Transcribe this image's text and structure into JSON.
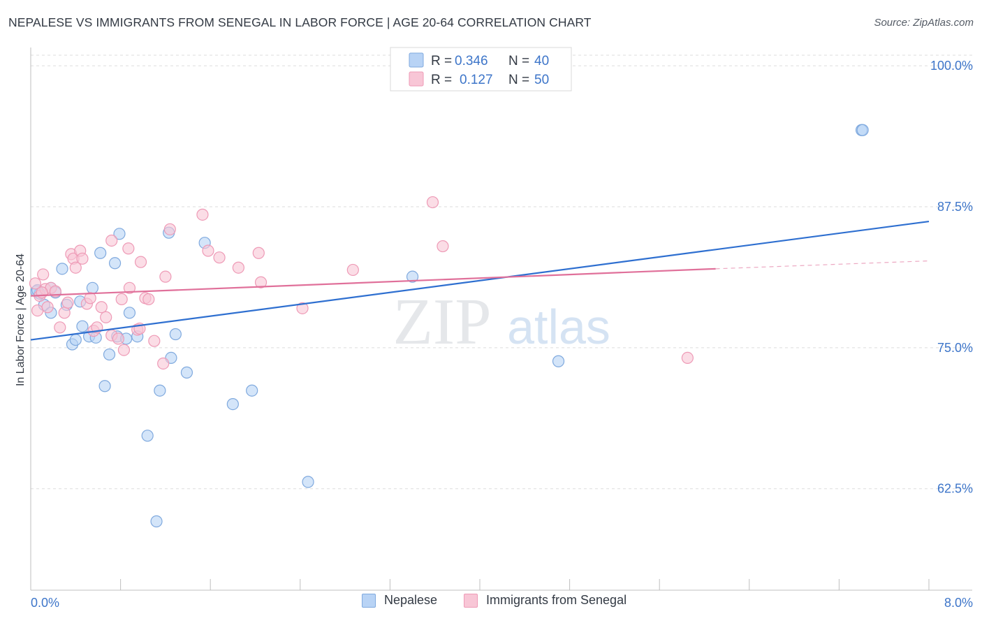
{
  "title": "NEPALESE VS IMMIGRANTS FROM SENEGAL IN LABOR FORCE | AGE 20-64 CORRELATION CHART",
  "source": "Source: ZipAtlas.com",
  "watermark": {
    "zip": "ZIP",
    "atlas": "atlas"
  },
  "colors": {
    "blue_fill": "#b8d3f5",
    "blue_stroke": "#7fa9de",
    "blue_line": "#2e6fd0",
    "pink_fill": "#f8c6d6",
    "pink_stroke": "#ee9ab6",
    "pink_line": "#e0709a",
    "axis_text": "#3d75c9",
    "grid": "#dddddd"
  },
  "legend": {
    "rows": [
      {
        "r_label": "R =",
        "r_value": "0.346",
        "n_label": "N =",
        "n_value": "40"
      },
      {
        "r_label": "R =",
        "r_value": "0.127",
        "n_label": "N =",
        "n_value": "50"
      }
    ]
  },
  "chart_data": {
    "type": "scatter",
    "title": "NEPALESE VS IMMIGRANTS FROM SENEGAL IN LABOR FORCE | AGE 20-64 CORRELATION CHART",
    "xlabel": "",
    "ylabel": "In Labor Force | Age 20-64",
    "xlim": [
      0.0,
      8.0
    ],
    "ylim": [
      53.5,
      101.5
    ],
    "x_tick_labels": [
      "0.0%",
      "8.0%"
    ],
    "y_ticks": [
      100.0,
      87.5,
      75.0,
      62.5
    ],
    "y_tick_labels": [
      "100.0%",
      "87.5%",
      "75.0%",
      "62.5%"
    ],
    "legend_position": "top-center",
    "series": [
      {
        "name": "Nepalese",
        "color": "blue",
        "trend": {
          "x": [
            0.0,
            8.0
          ],
          "y": [
            75.7,
            86.2
          ]
        },
        "points": [
          {
            "x": 0.05,
            "y": 80.0
          },
          {
            "x": 0.08,
            "y": 79.8
          },
          {
            "x": 0.12,
            "y": 78.8
          },
          {
            "x": 0.18,
            "y": 80.3
          },
          {
            "x": 0.18,
            "y": 78.1
          },
          {
            "x": 0.22,
            "y": 79.9
          },
          {
            "x": 0.28,
            "y": 82.0
          },
          {
            "x": 0.32,
            "y": 78.8
          },
          {
            "x": 0.37,
            "y": 75.3
          },
          {
            "x": 0.4,
            "y": 75.7
          },
          {
            "x": 0.44,
            "y": 79.1
          },
          {
            "x": 0.46,
            "y": 76.9
          },
          {
            "x": 0.52,
            "y": 76.0
          },
          {
            "x": 0.55,
            "y": 80.3
          },
          {
            "x": 0.58,
            "y": 75.9
          },
          {
            "x": 0.62,
            "y": 83.4
          },
          {
            "x": 0.66,
            "y": 71.6
          },
          {
            "x": 0.7,
            "y": 74.4
          },
          {
            "x": 0.75,
            "y": 82.5
          },
          {
            "x": 0.77,
            "y": 76.0
          },
          {
            "x": 0.79,
            "y": 85.1
          },
          {
            "x": 0.85,
            "y": 75.8
          },
          {
            "x": 0.88,
            "y": 78.1
          },
          {
            "x": 0.95,
            "y": 76.0
          },
          {
            "x": 1.04,
            "y": 67.2
          },
          {
            "x": 1.12,
            "y": 59.6
          },
          {
            "x": 1.15,
            "y": 71.2
          },
          {
            "x": 1.23,
            "y": 85.2
          },
          {
            "x": 1.25,
            "y": 74.1
          },
          {
            "x": 1.29,
            "y": 76.2
          },
          {
            "x": 1.39,
            "y": 72.8
          },
          {
            "x": 1.55,
            "y": 84.3
          },
          {
            "x": 1.8,
            "y": 70.0
          },
          {
            "x": 1.97,
            "y": 71.2
          },
          {
            "x": 2.47,
            "y": 63.1
          },
          {
            "x": 3.4,
            "y": 81.3
          },
          {
            "x": 4.7,
            "y": 73.8
          },
          {
            "x": 7.4,
            "y": 94.3
          },
          {
            "x": 7.41,
            "y": 94.3
          },
          {
            "x": 0.06,
            "y": 80.1
          }
        ]
      },
      {
        "name": "Immigrants from Senegal",
        "color": "pink",
        "trend": {
          "x": [
            0.0,
            6.1
          ],
          "y": [
            79.6,
            82.0
          ]
        },
        "trend_dashed": {
          "x": [
            6.1,
            8.0
          ],
          "y": [
            82.0,
            82.7
          ]
        },
        "points": [
          {
            "x": 0.04,
            "y": 80.7
          },
          {
            "x": 0.06,
            "y": 78.3
          },
          {
            "x": 0.08,
            "y": 79.6
          },
          {
            "x": 0.11,
            "y": 81.5
          },
          {
            "x": 0.13,
            "y": 80.2
          },
          {
            "x": 0.15,
            "y": 78.6
          },
          {
            "x": 0.18,
            "y": 80.3
          },
          {
            "x": 0.22,
            "y": 80.0
          },
          {
            "x": 0.26,
            "y": 76.8
          },
          {
            "x": 0.3,
            "y": 78.1
          },
          {
            "x": 0.33,
            "y": 79.0
          },
          {
            "x": 0.36,
            "y": 83.3
          },
          {
            "x": 0.38,
            "y": 82.9
          },
          {
            "x": 0.4,
            "y": 82.1
          },
          {
            "x": 0.44,
            "y": 83.6
          },
          {
            "x": 0.46,
            "y": 82.9
          },
          {
            "x": 0.5,
            "y": 78.9
          },
          {
            "x": 0.53,
            "y": 79.4
          },
          {
            "x": 0.56,
            "y": 76.5
          },
          {
            "x": 0.59,
            "y": 76.8
          },
          {
            "x": 0.63,
            "y": 78.6
          },
          {
            "x": 0.67,
            "y": 77.7
          },
          {
            "x": 0.72,
            "y": 84.5
          },
          {
            "x": 0.72,
            "y": 76.1
          },
          {
            "x": 0.78,
            "y": 75.8
          },
          {
            "x": 0.81,
            "y": 79.3
          },
          {
            "x": 0.83,
            "y": 74.8
          },
          {
            "x": 0.87,
            "y": 83.8
          },
          {
            "x": 0.88,
            "y": 80.3
          },
          {
            "x": 0.95,
            "y": 76.6
          },
          {
            "x": 0.98,
            "y": 82.6
          },
          {
            "x": 1.02,
            "y": 79.4
          },
          {
            "x": 1.05,
            "y": 79.3
          },
          {
            "x": 1.1,
            "y": 75.6
          },
          {
            "x": 1.18,
            "y": 73.6
          },
          {
            "x": 1.2,
            "y": 81.3
          },
          {
            "x": 1.24,
            "y": 85.5
          },
          {
            "x": 1.53,
            "y": 86.8
          },
          {
            "x": 1.58,
            "y": 83.6
          },
          {
            "x": 1.68,
            "y": 83.0
          },
          {
            "x": 1.85,
            "y": 82.1
          },
          {
            "x": 2.03,
            "y": 83.4
          },
          {
            "x": 2.05,
            "y": 80.8
          },
          {
            "x": 2.42,
            "y": 78.5
          },
          {
            "x": 2.87,
            "y": 81.9
          },
          {
            "x": 3.58,
            "y": 87.9
          },
          {
            "x": 3.67,
            "y": 84.0
          },
          {
            "x": 5.85,
            "y": 74.1
          },
          {
            "x": 0.1,
            "y": 79.9
          },
          {
            "x": 0.97,
            "y": 76.7
          }
        ]
      }
    ]
  },
  "bottom_legend": [
    {
      "label": "Nepalese",
      "color": "blue"
    },
    {
      "label": "Immigrants from Senegal",
      "color": "pink"
    }
  ]
}
